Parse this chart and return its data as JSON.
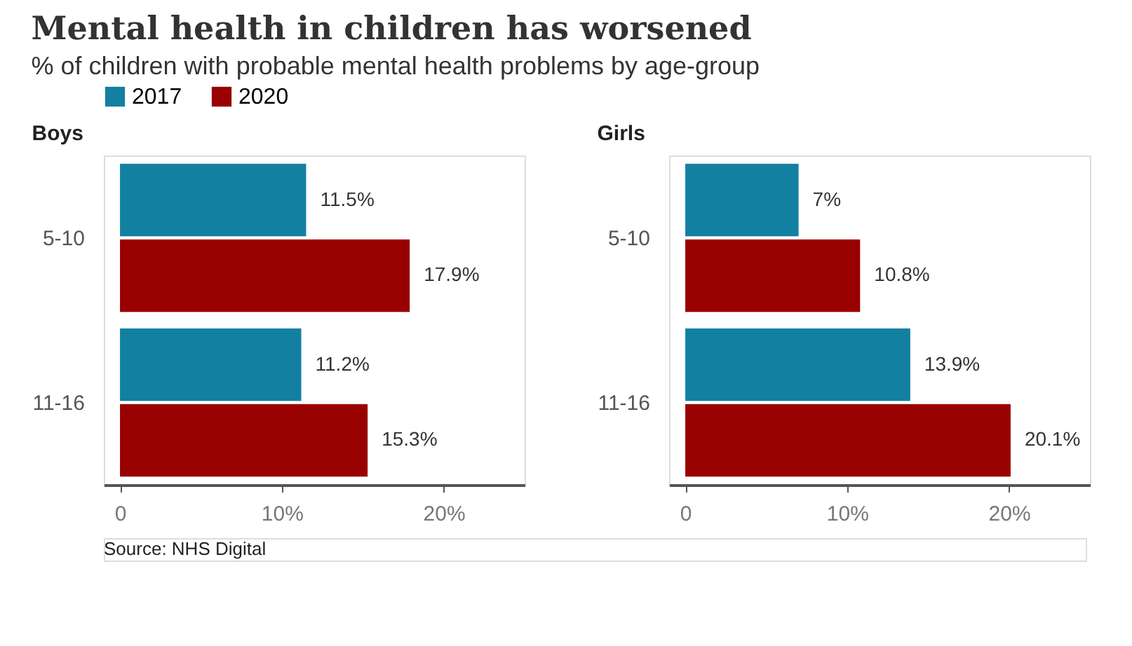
{
  "chart_data": [
    {
      "type": "other",
      "title": "Mental health in children has worsened",
      "subtitle": "% of children with probable mental health problems by age-group",
      "annotations": [
        "Source: NHS Digital"
      ]
    },
    {
      "type": "bar",
      "orientation": "horizontal",
      "title": "Boys",
      "categories": [
        "5-10",
        "11-16"
      ],
      "legend": "top",
      "grid": false,
      "xlim": [
        -1,
        25
      ],
      "xticks": [
        {
          "value": 0,
          "label": "0"
        },
        {
          "value": 10,
          "label": "10%"
        },
        {
          "value": 20,
          "label": "20%"
        }
      ],
      "series": [
        {
          "name": "2017",
          "color": "#1380a1",
          "values": [
            11.5,
            11.2
          ],
          "value_labels": [
            "11.5%",
            "11.2%"
          ]
        },
        {
          "name": "2020",
          "color": "#990000",
          "values": [
            17.9,
            15.3
          ],
          "value_labels": [
            "17.9%",
            "15.3%"
          ]
        }
      ]
    },
    {
      "type": "bar",
      "orientation": "horizontal",
      "title": "Girls",
      "categories": [
        "5-10",
        "11-16"
      ],
      "grid": false,
      "xlim": [
        -1,
        25
      ],
      "xticks": [
        {
          "value": 0,
          "label": "0"
        },
        {
          "value": 10,
          "label": "10%"
        },
        {
          "value": 20,
          "label": "20%"
        }
      ],
      "series": [
        {
          "name": "2017",
          "color": "#1380a1",
          "values": [
            7,
            13.9
          ],
          "value_labels": [
            "7%",
            "13.9%"
          ]
        },
        {
          "name": "2020",
          "color": "#990000",
          "values": [
            10.8,
            20.1
          ],
          "value_labels": [
            "10.8%",
            "20.1%"
          ]
        }
      ]
    }
  ]
}
